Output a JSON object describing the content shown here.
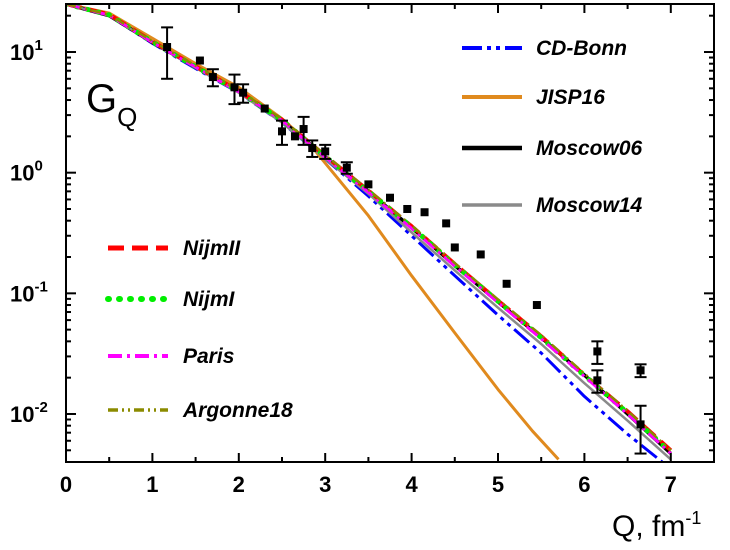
{
  "chart_data": {
    "type": "line",
    "title": "G",
    "title_sub": "Q",
    "xlabel": "Q,  fm",
    "xlabel_sup": "-1",
    "ylabel": "",
    "xlim": [
      0,
      7.5
    ],
    "ylim": [
      0.004,
      25
    ],
    "yscale": "log",
    "grid": false,
    "x_ticks": [
      0,
      1,
      2,
      3,
      4,
      5,
      6,
      7
    ],
    "x_tick_labels": [
      "0",
      "1",
      "2",
      "3",
      "4",
      "5",
      "6",
      "7"
    ],
    "y_ticks": [
      10,
      1,
      0.1,
      0.01
    ],
    "y_tick_labels": [
      {
        "base": "10",
        "exp": "1"
      },
      {
        "base": "10",
        "exp": "0"
      },
      {
        "base": "10",
        "exp": "-1"
      },
      {
        "base": "10",
        "exp": "-2"
      }
    ],
    "series": [
      {
        "name": "CD-Bonn",
        "color": "#0000ff",
        "dash": "20,5,4,5,4,5",
        "width": 3,
        "x": [
          0,
          0.5,
          1,
          1.5,
          2,
          2.5,
          3,
          3.5,
          4,
          4.5,
          5,
          5.5,
          6,
          6.5,
          6.9
        ],
        "y": [
          25,
          20,
          11.8,
          7.3,
          4.6,
          2.6,
          1.3,
          0.64,
          0.3,
          0.14,
          0.066,
          0.032,
          0.014,
          0.0068,
          0.004
        ]
      },
      {
        "name": "JISP16",
        "color": "#e08a1e",
        "dash": "",
        "width": 3,
        "x": [
          0,
          0.5,
          1,
          1.5,
          2,
          2.5,
          2.8,
          3,
          3.5,
          4,
          4.5,
          5,
          5.4,
          5.7
        ],
        "y": [
          25,
          21,
          13,
          8,
          5.1,
          2.8,
          1.8,
          1.2,
          0.44,
          0.14,
          0.047,
          0.016,
          0.0072,
          0.0042
        ]
      },
      {
        "name": "Moscow06",
        "color": "#000000",
        "dash": "",
        "width": 3.5,
        "x": [
          0,
          0.5,
          1,
          1.5,
          2,
          2.5,
          3,
          3.5,
          4,
          4.5,
          5,
          5.5,
          6,
          6.5,
          7
        ],
        "y": [
          25,
          20,
          12,
          7.5,
          4.7,
          2.7,
          1.35,
          0.7,
          0.35,
          0.17,
          0.085,
          0.043,
          0.021,
          0.01,
          0.0047
        ]
      },
      {
        "name": "Moscow14",
        "color": "#8a8a8a",
        "dash": "",
        "width": 2.5,
        "x": [
          0,
          0.5,
          1,
          1.5,
          2,
          2.5,
          3,
          3.5,
          4,
          4.5,
          5,
          5.5,
          6,
          6.5,
          7
        ],
        "y": [
          25,
          20,
          12,
          7.4,
          4.6,
          2.6,
          1.3,
          0.67,
          0.32,
          0.155,
          0.076,
          0.038,
          0.018,
          0.0088,
          0.0042
        ]
      },
      {
        "name": "NijmII",
        "color": "#ff0000",
        "dash": "16,8",
        "width": 4,
        "x": [
          0,
          0.5,
          1,
          1.5,
          2,
          2.5,
          3,
          3.5,
          4,
          4.5,
          5,
          5.5,
          6,
          6.5,
          7
        ],
        "y": [
          25,
          20.5,
          12.2,
          7.6,
          4.75,
          2.75,
          1.38,
          0.71,
          0.36,
          0.175,
          0.087,
          0.044,
          0.021,
          0.0105,
          0.005
        ]
      },
      {
        "name": "NijmI",
        "color": "#00ee00",
        "dash": "1,10",
        "width": 5,
        "x": [
          0,
          0.5,
          1,
          1.5,
          2,
          2.5,
          3,
          3.5,
          4,
          4.5,
          5,
          5.5,
          6,
          6.5,
          7
        ],
        "y": [
          25,
          20.3,
          12.1,
          7.55,
          4.7,
          2.72,
          1.36,
          0.7,
          0.355,
          0.172,
          0.086,
          0.043,
          0.0208,
          0.0102,
          0.0048
        ]
      },
      {
        "name": "Paris",
        "color": "#ff00ff",
        "dash": "14,5,3,5",
        "width": 3,
        "x": [
          0,
          0.5,
          1,
          1.5,
          2,
          2.5,
          3,
          3.5,
          4,
          4.5,
          5,
          5.5,
          6,
          6.5,
          7
        ],
        "y": [
          25,
          20.2,
          12.0,
          7.5,
          4.68,
          2.7,
          1.34,
          0.69,
          0.345,
          0.168,
          0.084,
          0.042,
          0.0205,
          0.01,
          0.0047
        ]
      },
      {
        "name": "Argonne18",
        "color": "#8b8b00",
        "dash": "10,4,2,4,2,4",
        "width": 2.5,
        "x": [
          0,
          0.5,
          1,
          1.5,
          2,
          2.5,
          3,
          3.5,
          4,
          4.5,
          5,
          5.5,
          6,
          6.5,
          7
        ],
        "y": [
          25,
          20.4,
          12.3,
          7.7,
          4.8,
          2.78,
          1.4,
          0.72,
          0.365,
          0.178,
          0.089,
          0.045,
          0.0216,
          0.0106,
          0.005
        ]
      }
    ],
    "experimental": {
      "name": "",
      "x": [
        1.17,
        1.55,
        1.7,
        1.95,
        2.05,
        2.3,
        2.5,
        2.65,
        2.75,
        2.85,
        3.0,
        3.25,
        3.5,
        3.75,
        3.95,
        4.15,
        4.4,
        4.5,
        4.8,
        5.1,
        5.45,
        6.15,
        6.15,
        6.65,
        6.65
      ],
      "y": [
        11,
        8.5,
        6.2,
        5.1,
        4.6,
        3.4,
        2.2,
        2.0,
        2.3,
        1.6,
        1.5,
        1.1,
        0.8,
        0.62,
        0.5,
        0.47,
        0.38,
        0.24,
        0.21,
        0.12,
        0.08,
        0.033,
        0.019,
        0.023,
        0.0082
      ],
      "err": [
        5,
        0,
        1.0,
        1.4,
        0.8,
        0,
        0.5,
        0,
        0.6,
        0.25,
        0.2,
        0.12,
        0,
        0,
        0,
        0,
        0,
        0,
        0,
        0,
        0,
        0.007,
        0.004,
        0.0028,
        0.0035
      ]
    },
    "legend_top": [
      "CD-Bonn",
      "JISP16",
      "Moscow06",
      "Moscow14"
    ],
    "legend_bottom": [
      "NijmII",
      "NijmI",
      "Paris",
      "Argonne18"
    ],
    "legend_labels": {
      "CD-Bonn": "CD-Bonn",
      "JISP16": "JISP16",
      "Moscow06": "Moscow06",
      "Moscow14": "Moscow14",
      "NijmII": "NijmII",
      "NijmI": "NijmI",
      "Paris": "Paris",
      "Argonne18": "Argonne18"
    }
  }
}
